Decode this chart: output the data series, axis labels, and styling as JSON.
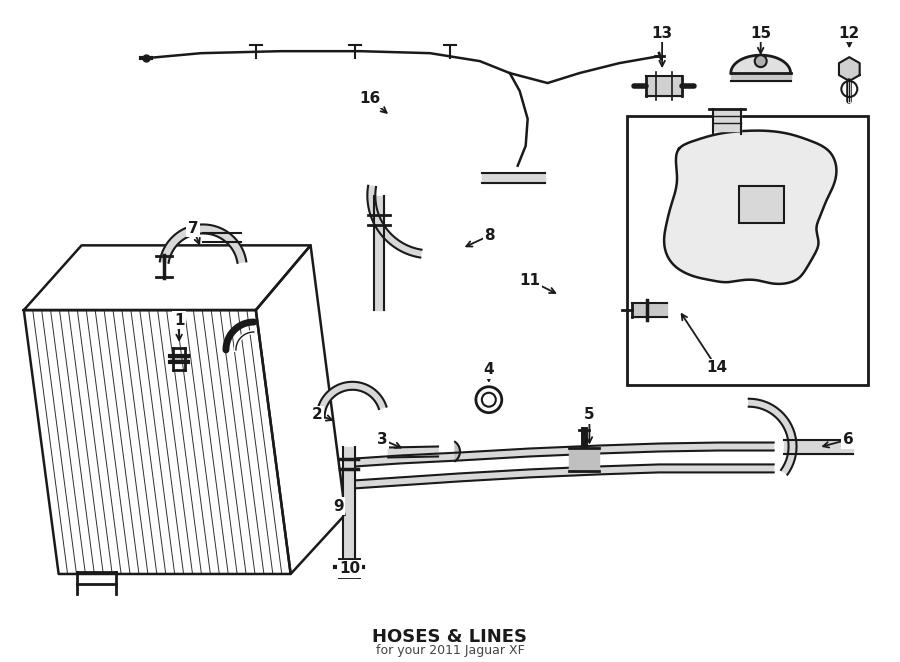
{
  "title": "HOSES & LINES",
  "subtitle": "for your 2011 Jaguar XF",
  "background_color": "#ffffff",
  "line_color": "#1a1a1a",
  "fig_width": 9.0,
  "fig_height": 6.62,
  "dpi": 100
}
